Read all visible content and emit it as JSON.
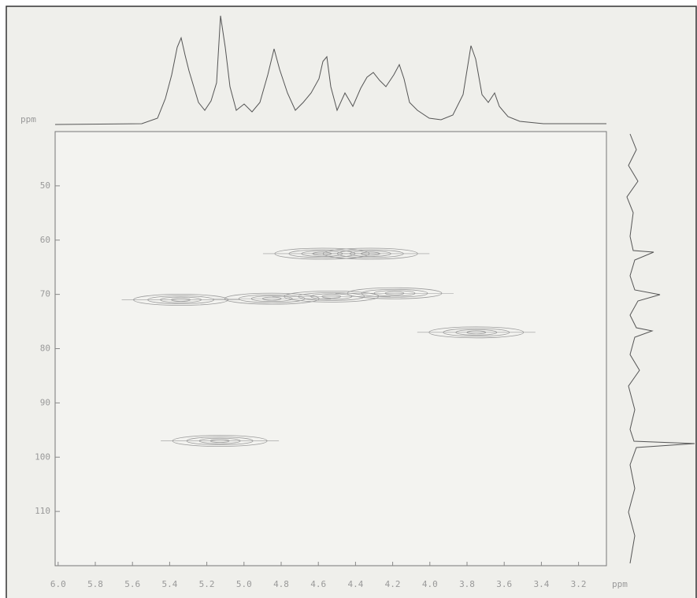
{
  "chart_data": {
    "type": "contour",
    "xlabel": "ppm",
    "ylabel": "ppm",
    "x": [
      5.34,
      4.85,
      4.53,
      4.19,
      4.58,
      4.32,
      3.75,
      5.13
    ],
    "values": [
      71,
      70.8,
      70.4,
      69.8,
      62.5,
      62.5,
      77,
      97
    ],
    "color": "#9a9a9a",
    "xlim": [
      6.05,
      3.05
    ],
    "ylim": [
      40,
      120
    ],
    "xticks": [
      {
        "value": 6,
        "label": "6.0"
      },
      5.8,
      5.6,
      5.4,
      5.2,
      {
        "value": 5,
        "label": "5.0"
      },
      4.8,
      4.6,
      4.4,
      4.2,
      {
        "value": 4,
        "label": "4.0"
      },
      3.8,
      3.6,
      3.4,
      3.2
    ],
    "yticks": [
      50,
      60,
      70,
      80,
      90,
      100,
      110
    ]
  }
}
